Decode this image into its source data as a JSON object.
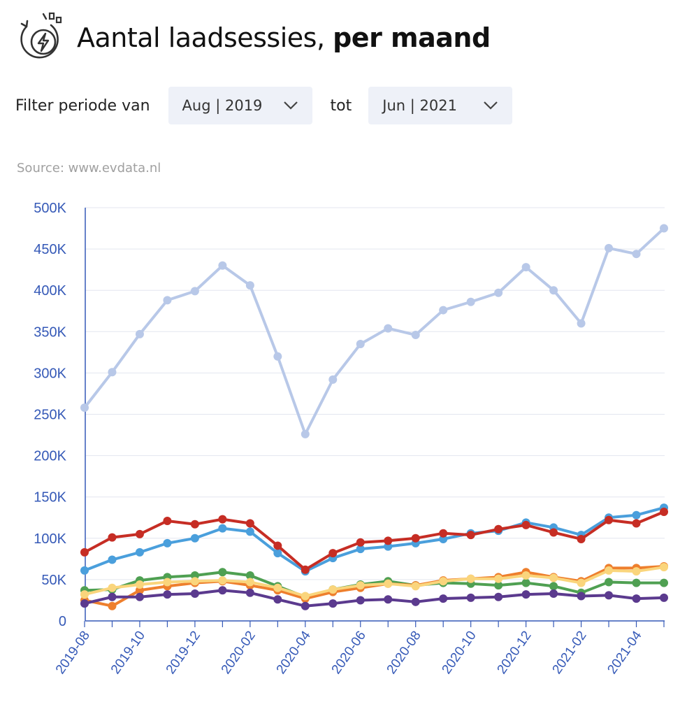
{
  "header": {
    "icon": "charging-bolt-icon",
    "title_regular": "Aantal laadsessies, ",
    "title_bold": "per maand"
  },
  "filter": {
    "label_from": "Filter periode van",
    "from_value": "Aug | 2019",
    "label_to": "tot",
    "to_value": "Jun | 2021"
  },
  "source": "Source: www.evdata.nl",
  "chart_data": {
    "type": "line",
    "title": "",
    "xlabel": "",
    "ylabel": "",
    "x": [
      "2019-08",
      "2019-09",
      "2019-10",
      "2019-11",
      "2019-12",
      "2020-01",
      "2020-02",
      "2020-03",
      "2020-04",
      "2020-05",
      "2020-06",
      "2020-07",
      "2020-08",
      "2020-09",
      "2020-10",
      "2020-11",
      "2020-12",
      "2021-01",
      "2021-02",
      "2021-03",
      "2021-04",
      "2021-05"
    ],
    "x_tick_labels": [
      "2019-08",
      "2019-10",
      "2019-12",
      "2020-02",
      "2020-04",
      "2020-06",
      "2020-08",
      "2020-10",
      "2020-12",
      "2021-02",
      "2021-04"
    ],
    "y_tick_labels": [
      "0",
      "50K",
      "100K",
      "150K",
      "200K",
      "250K",
      "300K",
      "350K",
      "400K",
      "450K",
      "500K"
    ],
    "ylim": [
      0,
      500000
    ],
    "grid": "horizontal",
    "series": [
      {
        "color": "#b8c8e8",
        "values": [
          258000,
          301000,
          347000,
          388000,
          399000,
          430000,
          406000,
          320000,
          226000,
          292000,
          335000,
          354000,
          346000,
          376000,
          386000,
          397000,
          428000,
          400000,
          360000,
          451000,
          444000,
          475000
        ]
      },
      {
        "color": "#4a9fdc",
        "values": [
          61000,
          74000,
          83000,
          94000,
          100000,
          112000,
          108000,
          82000,
          60000,
          76000,
          87000,
          90000,
          94000,
          99000,
          106000,
          109000,
          119000,
          113000,
          104000,
          125000,
          128000,
          137000
        ]
      },
      {
        "color": "#c62d24",
        "values": [
          83000,
          101000,
          105000,
          121000,
          117000,
          123000,
          118000,
          91000,
          62000,
          82000,
          95000,
          97000,
          100000,
          106000,
          104000,
          111000,
          116000,
          107000,
          99000,
          122000,
          118000,
          132000
        ]
      },
      {
        "color": "#4fa052",
        "values": [
          37000,
          38000,
          49000,
          53000,
          55000,
          59000,
          55000,
          42000,
          29000,
          38000,
          44000,
          48000,
          43000,
          46000,
          45000,
          43000,
          46000,
          42000,
          34000,
          47000,
          46000,
          46000
        ]
      },
      {
        "color": "#ee7f2d",
        "values": [
          25000,
          18000,
          37000,
          42000,
          46000,
          48000,
          43000,
          37000,
          27000,
          35000,
          40000,
          45000,
          43000,
          49000,
          51000,
          53000,
          59000,
          53000,
          48000,
          64000,
          64000,
          66000
        ]
      },
      {
        "color": "#fad57c",
        "values": [
          32000,
          40000,
          44000,
          47000,
          48000,
          49000,
          47000,
          40000,
          30000,
          38000,
          43000,
          45000,
          42000,
          48000,
          51000,
          51000,
          55000,
          52000,
          46000,
          61000,
          60000,
          65000
        ]
      },
      {
        "color": "#5b3a8e",
        "values": [
          21000,
          29000,
          29000,
          32000,
          33000,
          37000,
          34000,
          26000,
          18000,
          21000,
          25000,
          26000,
          23000,
          27000,
          28000,
          29000,
          32000,
          33000,
          30000,
          31000,
          27000,
          28000
        ]
      }
    ]
  }
}
